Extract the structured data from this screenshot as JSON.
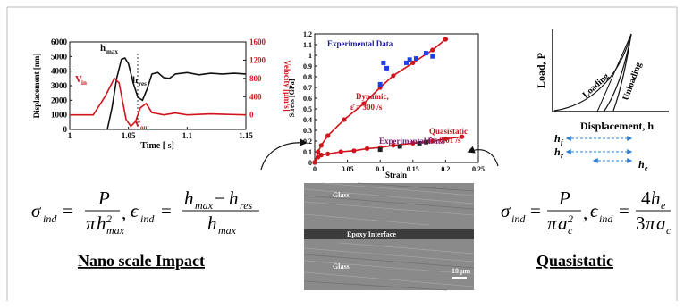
{
  "chart_data": [
    {
      "type": "line",
      "x_label": "Time [ s]",
      "y_label": "Displacement [nm]",
      "y2_label": "Velocity [μm/s]",
      "xlim": [
        1,
        1.15
      ],
      "xticks": [
        1,
        1.05,
        1.1,
        1.15
      ],
      "ylim": [
        0,
        6000
      ],
      "yticks": [
        0,
        1000,
        2000,
        3000,
        4000,
        5000,
        6000
      ],
      "y2lim": [
        -320,
        1600
      ],
      "y2ticks": [
        0,
        400,
        800,
        1200,
        1600
      ],
      "series": [
        {
          "color": "#111111",
          "x": [
            1.032,
            1.036,
            1.04,
            1.044,
            1.047,
            1.05,
            1.054,
            1.058,
            1.062,
            1.066,
            1.07,
            1.075,
            1.08,
            1.085,
            1.09,
            1.1,
            1.11,
            1.12,
            1.13,
            1.14,
            1.15
          ],
          "values": [
            0,
            1500,
            3500,
            4800,
            4900,
            4500,
            3200,
            2200,
            2000,
            2800,
            3800,
            3900,
            3550,
            3500,
            3800,
            3900,
            3750,
            3850,
            3800,
            3850,
            3800
          ]
        },
        {
          "color": "#d0141c",
          "axis": "y2",
          "x": [
            1,
            1.02,
            1.03,
            1.038,
            1.042,
            1.045,
            1.048,
            1.052,
            1.056,
            1.06,
            1.065,
            1.07,
            1.08,
            1.09,
            1.1,
            1.12,
            1.15
          ],
          "values": [
            0,
            0,
            400,
            800,
            700,
            300,
            -100,
            -250,
            -150,
            150,
            250,
            50,
            0,
            40,
            0,
            20,
            0
          ]
        }
      ],
      "annotations": [
        {
          "text": "h",
          "sub": "max",
          "color": "#111111"
        },
        {
          "text": "h",
          "sub": "res",
          "color": "#111111"
        },
        {
          "text": "V",
          "sub": "in",
          "color": "#d0141c"
        },
        {
          "text": "V",
          "sub": "out",
          "color": "#d0141c"
        }
      ]
    },
    {
      "type": "line",
      "x_label": "Strain",
      "y_label": "Stress [GPa]",
      "xlim": [
        0,
        0.25
      ],
      "xticks": [
        0,
        0.05,
        0.1,
        0.15,
        0.2,
        0.25
      ],
      "ylim": [
        0,
        1.2
      ],
      "yticks": [
        0,
        0.1,
        0.2,
        0.3,
        0.4,
        0.5,
        0.6,
        0.7,
        0.8,
        0.9,
        1,
        1.1,
        1.2
      ],
      "series": [
        {
          "color": "#d0141c",
          "marker": "circle",
          "line": true,
          "x": [
            0,
            0.005,
            0.01,
            0.02,
            0.045,
            0.075,
            0.1,
            0.12,
            0.15,
            0.18,
            0.2
          ],
          "values": [
            0,
            0.1,
            0.16,
            0.25,
            0.4,
            0.55,
            0.7,
            0.81,
            0.93,
            1.05,
            1.15
          ]
        },
        {
          "color": "#1f3fe0",
          "marker": "square",
          "line": false,
          "x": [
            0.1,
            0.105,
            0.11,
            0.14,
            0.145,
            0.155,
            0.17,
            0.18
          ],
          "values": [
            0.73,
            0.93,
            0.88,
            0.93,
            0.96,
            0.97,
            1.02,
            0.99
          ]
        },
        {
          "color": "#d0141c",
          "marker": "circle",
          "line": true,
          "x": [
            0,
            0.005,
            0.01,
            0.02,
            0.04,
            0.06,
            0.08,
            0.1,
            0.12,
            0.15,
            0.18,
            0.2,
            0.225
          ],
          "values": [
            0,
            0.05,
            0.07,
            0.08,
            0.1,
            0.11,
            0.13,
            0.14,
            0.16,
            0.18,
            0.2,
            0.22,
            0.24
          ]
        },
        {
          "color": "#222222",
          "marker": "square",
          "line": false,
          "x": [
            0.1,
            0.13,
            0.16,
            0.17
          ],
          "values": [
            0.12,
            0.15,
            0.18,
            0.19
          ]
        }
      ],
      "annotations": [
        {
          "text": "Experimental Data",
          "color": "#1a1a8c"
        },
        {
          "text": "Dynamic,",
          "color": "#c0141c"
        },
        {
          "text": "ε̇ = 300 /s",
          "color": "#c0141c"
        },
        {
          "text": "Quasistatic",
          "color": "#c0141c"
        },
        {
          "text": "ε̇ = 0.01 /s",
          "color": "#c0141c"
        },
        {
          "text": "Experimental Data",
          "color": "#7a1a6a"
        }
      ]
    }
  ],
  "equations": {
    "impact": [
      "σ",
      "ind",
      "=",
      "P",
      "π",
      "h",
      "max",
      "2",
      ",",
      "ϵ",
      "ind",
      "=",
      "h",
      "max",
      "−",
      "h",
      "res",
      "h",
      "max"
    ],
    "quasistatic": [
      "σ",
      "ind",
      "=",
      "P",
      "π",
      "a",
      "c",
      "2",
      ",",
      "ϵ",
      "ind",
      "=",
      "4",
      "h",
      "e",
      "3",
      "π",
      "a",
      "c"
    ]
  },
  "captions": {
    "impact": "Nano scale Impact",
    "quasistatic": "Quasistatic"
  },
  "micrograph": {
    "labels": [
      "Glass",
      "Epoxy Interface",
      "Glass",
      "10 μm"
    ]
  },
  "schematic": {
    "y_label": "Load, P",
    "x_label": "Displacement, h",
    "loading": "Loading",
    "unloading": "Unloading",
    "depths": [
      {
        "text": "h",
        "sub": "f"
      },
      {
        "text": "h",
        "sub": "r"
      },
      {
        "text": "h",
        "sub": "e"
      }
    ]
  }
}
